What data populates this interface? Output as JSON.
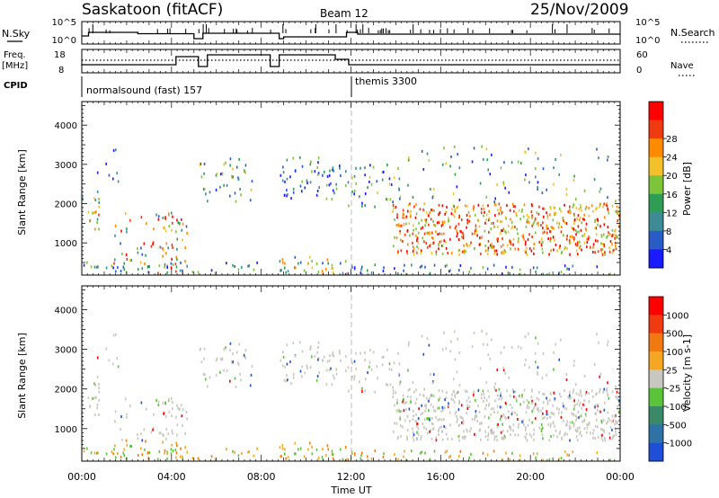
{
  "header": {
    "station": "Saskatoon (fitACF)",
    "beam": "Beam 12",
    "date": "25/Nov/2009"
  },
  "noise_panel": {
    "left_label": "N.Sky",
    "left_ticks": [
      "10^5",
      "10^0"
    ],
    "right_label": "N.Search",
    "right_ticks": [
      "10^5",
      "10^0"
    ]
  },
  "freq_panel": {
    "left_label_line1": "Freq.",
    "left_label_line2": "[MHz]",
    "left_ticks": [
      "18",
      "8"
    ],
    "right_label": "Nave",
    "right_ticks": [
      "60",
      "0"
    ]
  },
  "cpid_panel": {
    "label": "CPID",
    "program_1": "normalsound (fast) 157",
    "program_2": "themis 3300"
  },
  "chart_data": [
    {
      "type": "heatmap",
      "name": "power",
      "ylabel": "Slant Range [km]",
      "xlabel": "Time UT",
      "ylim": [
        180,
        4600
      ],
      "y_ticks": [
        1000,
        2000,
        3000,
        4000
      ],
      "x_ticks": [
        "00:00",
        "04:00",
        "08:00",
        "12:00",
        "16:00",
        "20:00",
        "00:00"
      ],
      "colorbar_label": "Power [dB]",
      "colorbar_ticks": [
        "4",
        "8",
        "12",
        "16",
        "20",
        "24",
        "28"
      ],
      "colorbar_colors": [
        "#1a1aff",
        "#2a5cc8",
        "#3e8a96",
        "#2f9e54",
        "#7cc43a",
        "#f2c02a",
        "#ff8a00",
        "#f03a0f",
        "#ff0000"
      ]
    },
    {
      "type": "heatmap",
      "name": "velocity",
      "ylabel": "Slant Range [km]",
      "xlabel": "Time UT",
      "ylim": [
        180,
        4600
      ],
      "y_ticks": [
        1000,
        2000,
        3000,
        4000
      ],
      "x_ticks": [
        "00:00",
        "04:00",
        "08:00",
        "12:00",
        "16:00",
        "20:00",
        "00:00"
      ],
      "colorbar_label": "Velocity [m s-1]",
      "colorbar_ticks": [
        "1000",
        "500",
        "100",
        "25",
        "-25",
        "-100",
        "-500",
        "-1000"
      ],
      "colorbar_colors": [
        "#1f4fd8",
        "#2f73a6",
        "#3a8a6a",
        "#5bc33a",
        "#c8c8c0",
        "#f5a623",
        "#f07a10",
        "#f03a10",
        "#ff0000"
      ]
    }
  ],
  "axes": {
    "x_title": "Time UT"
  }
}
